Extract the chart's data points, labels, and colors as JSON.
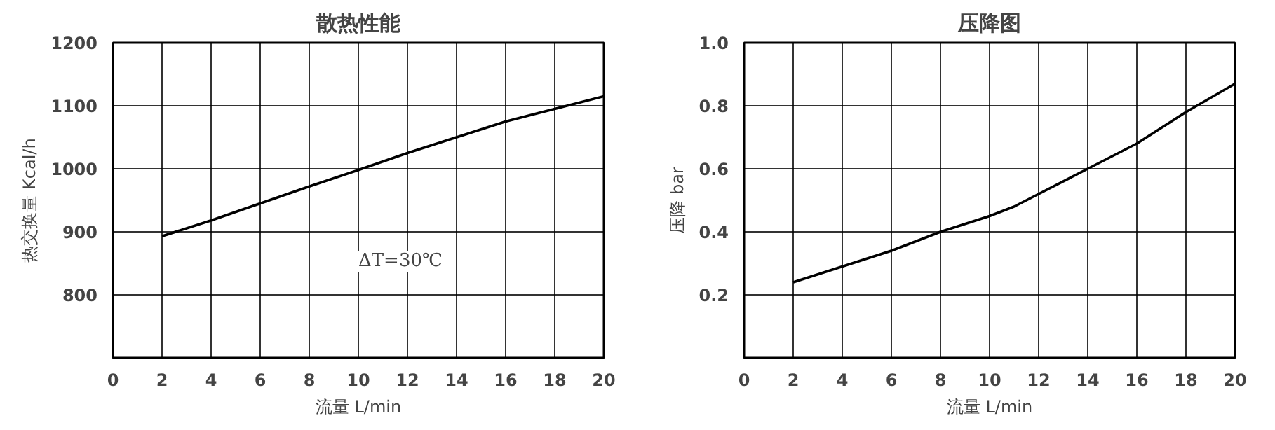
{
  "chart_data": [
    {
      "type": "line",
      "title": "散热性能",
      "xlabel": "流量 L/min",
      "ylabel": "热交换量 Kcal/h",
      "x": [
        2,
        4,
        6,
        8,
        10,
        12,
        14,
        16,
        18,
        20
      ],
      "series": [
        {
          "color": "#000000",
          "values": [
            893,
            918,
            945,
            972,
            998,
            1025,
            1050,
            1075,
            1095,
            1115
          ]
        }
      ],
      "xlim": [
        0,
        20
      ],
      "xticks": [
        0,
        2,
        4,
        6,
        8,
        10,
        12,
        14,
        16,
        18,
        20
      ],
      "ylim": [
        700,
        1200
      ],
      "yticks": [
        800,
        900,
        1000,
        1100,
        1200
      ],
      "grid": true,
      "annotations": [
        "ΔT=30℃"
      ]
    },
    {
      "type": "line",
      "title": "压降图",
      "xlabel": "流量 L/min",
      "ylabel": "压降 bar",
      "x": [
        2,
        4,
        6,
        8,
        10,
        11,
        12,
        14,
        16,
        18,
        20
      ],
      "series": [
        {
          "color": "#000000",
          "values": [
            0.24,
            0.29,
            0.34,
            0.4,
            0.45,
            0.48,
            0.52,
            0.6,
            0.68,
            0.78,
            0.87
          ]
        }
      ],
      "xlim": [
        0,
        20
      ],
      "xticks": [
        0,
        2,
        4,
        6,
        8,
        10,
        12,
        14,
        16,
        18,
        20
      ],
      "ylim": [
        0,
        1.0
      ],
      "yticks": [
        0.2,
        0.4,
        0.6,
        0.8,
        {
          "value": 1.0,
          "label": "1.0"
        }
      ],
      "grid": true
    }
  ]
}
